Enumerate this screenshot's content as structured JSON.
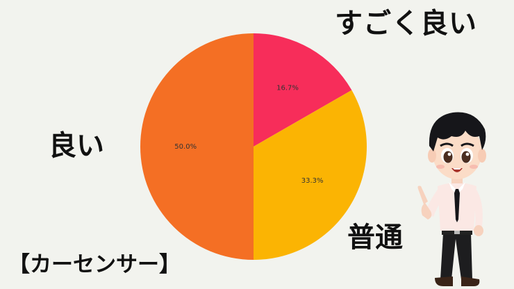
{
  "chart_data": {
    "type": "pie",
    "title": "",
    "slices": [
      {
        "label": "すごく良い",
        "value": 16.7,
        "pct_label": "16.7%",
        "color": "#f72d5a"
      },
      {
        "label": "普通",
        "value": 33.3,
        "pct_label": "33.3%",
        "color": "#fbb403"
      },
      {
        "label": "良い",
        "value": 50.0,
        "pct_label": "50.0%",
        "color": "#f46f24"
      }
    ],
    "start_angle_deg": 90,
    "direction": "clockwise",
    "legend": "none"
  },
  "labels": {
    "great": "すごく良い",
    "good": "良い",
    "ok": "普通"
  },
  "footer": {
    "brand": "【カーセンサー】"
  },
  "illustration": {
    "icon": "pointing-businessman-illustration"
  }
}
